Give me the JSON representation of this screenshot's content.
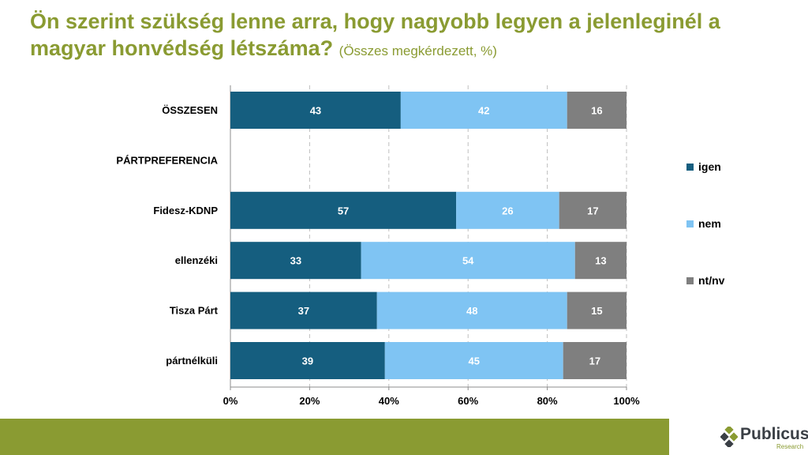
{
  "title": {
    "main": "Ön szerint szükség lenne arra, hogy nagyobb legyen a jelenleginél a magyar honvédség létszáma?",
    "sub": "(Összes megkérdezett, %)"
  },
  "chart_data": {
    "type": "bar",
    "orientation": "horizontal",
    "stacked": "100%",
    "categories": [
      "ÖSSZESEN",
      "PÁRTPREFERENCIA",
      "Fidesz-KDNP",
      "ellenzéki",
      "Tisza Párt",
      "pártnélküli"
    ],
    "series": [
      {
        "name": "igen",
        "color": "#155e7f",
        "values": [
          43,
          null,
          57,
          33,
          37,
          39
        ]
      },
      {
        "name": "nem",
        "color": "#7fc4f3",
        "values": [
          42,
          null,
          26,
          54,
          48,
          45
        ]
      },
      {
        "name": "nt/nv",
        "color": "#7f7f7f",
        "values": [
          16,
          null,
          17,
          13,
          15,
          17
        ]
      }
    ],
    "xticks": [
      "0%",
      "20%",
      "40%",
      "60%",
      "80%",
      "100%"
    ],
    "xlim": [
      0,
      100
    ],
    "grid": "vertical dashed",
    "legend": "right"
  },
  "logo": {
    "name": "Publicus",
    "sub": "Research"
  },
  "colors": {
    "accent": "#8a9b32"
  }
}
